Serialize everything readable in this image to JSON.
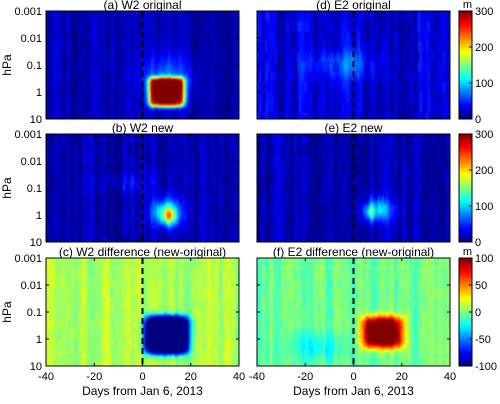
{
  "chart_data": {
    "type": "heatmap",
    "xlabel": "Days from Jan 6, 2013",
    "ylabel": "hPa",
    "x_range": [
      -40,
      40
    ],
    "x_ticks": [
      -40,
      -20,
      0,
      20,
      40
    ],
    "y_scale": "log",
    "y_range_hPa": [
      10,
      0.001
    ],
    "y_ticks": [
      "0.001",
      "0.01",
      "0.1",
      "1",
      "10"
    ],
    "reference_line_day": 0,
    "colormap": "jet",
    "panels": [
      {
        "id": "a",
        "title": "(a) W2 original",
        "row": 0,
        "col": 0,
        "scale": "top",
        "background": 15,
        "noise": 15,
        "blobs": [
          {
            "day": 10,
            "log_p": 0,
            "amp": 310,
            "sx": 7.5,
            "sy": 0.55,
            "p": 6
          },
          {
            "day": 10,
            "log_p": -0.5,
            "amp": 60,
            "sx": 10,
            "sy": 0.8,
            "p": 2
          }
        ]
      },
      {
        "id": "d",
        "title": "(d) E2 original",
        "row": 0,
        "col": 1,
        "scale": "top",
        "background": 25,
        "noise": 25,
        "blobs": [
          {
            "day": -5,
            "log_p": -1,
            "amp": 35,
            "sx": 15,
            "sy": 0.5,
            "p": 2
          },
          {
            "day": 0,
            "log_p": -1.2,
            "amp": 20,
            "sx": 4,
            "sy": 0.7,
            "p": 2
          }
        ]
      },
      {
        "id": "b",
        "title": "(b) W2 new",
        "row": 1,
        "col": 0,
        "scale": "middle",
        "background": 15,
        "noise": 20,
        "blobs": [
          {
            "day": 10,
            "log_p": -0.1,
            "amp": 120,
            "sx": 6,
            "sy": 0.5,
            "p": 2
          },
          {
            "day": 11,
            "log_p": 0.05,
            "amp": 110,
            "sx": 2.5,
            "sy": 0.3,
            "p": 2
          },
          {
            "day": -5,
            "log_p": -1.2,
            "amp": 20,
            "sx": 12,
            "sy": 0.4,
            "p": 2
          }
        ]
      },
      {
        "id": "e",
        "title": "(e) E2 new",
        "row": 1,
        "col": 1,
        "scale": "middle",
        "background": 15,
        "noise": 20,
        "blobs": [
          {
            "day": 10,
            "log_p": -0.2,
            "amp": 90,
            "sx": 6,
            "sy": 0.45,
            "p": 2
          },
          {
            "day": 7,
            "log_p": -0.1,
            "amp": 60,
            "sx": 2,
            "sy": 0.25,
            "p": 2
          }
        ]
      },
      {
        "id": "c",
        "title": "(c) W2 difference (new-original)",
        "row": 2,
        "col": 0,
        "scale": "bottom",
        "background": 8,
        "noise": 12,
        "blobs": [
          {
            "day": 10,
            "log_p": -0.15,
            "amp": -220,
            "sx": 9,
            "sy": 0.7,
            "p": 5
          }
        ]
      },
      {
        "id": "f",
        "title": "(f) E2 difference (new-original)",
        "row": 2,
        "col": 1,
        "scale": "bottom",
        "background": -4,
        "noise": 12,
        "blobs": [
          {
            "day": 12,
            "log_p": -0.25,
            "amp": 130,
            "sx": 8.5,
            "sy": 0.6,
            "p": 4
          },
          {
            "day": -15,
            "log_p": 0.3,
            "amp": -22,
            "sx": 12,
            "sy": 0.5,
            "p": 2
          }
        ]
      }
    ],
    "colorbars": [
      {
        "id": "top",
        "unit": "m",
        "min": 0,
        "max": 300,
        "ticks": [
          0,
          100,
          200,
          300
        ]
      },
      {
        "id": "middle",
        "unit": "",
        "min": 0,
        "max": 300,
        "ticks": [
          0,
          100,
          200,
          300
        ]
      },
      {
        "id": "bottom",
        "unit": "m",
        "min": -100,
        "max": 100,
        "ticks": [
          -100,
          -50,
          0,
          50,
          100
        ]
      }
    ]
  }
}
